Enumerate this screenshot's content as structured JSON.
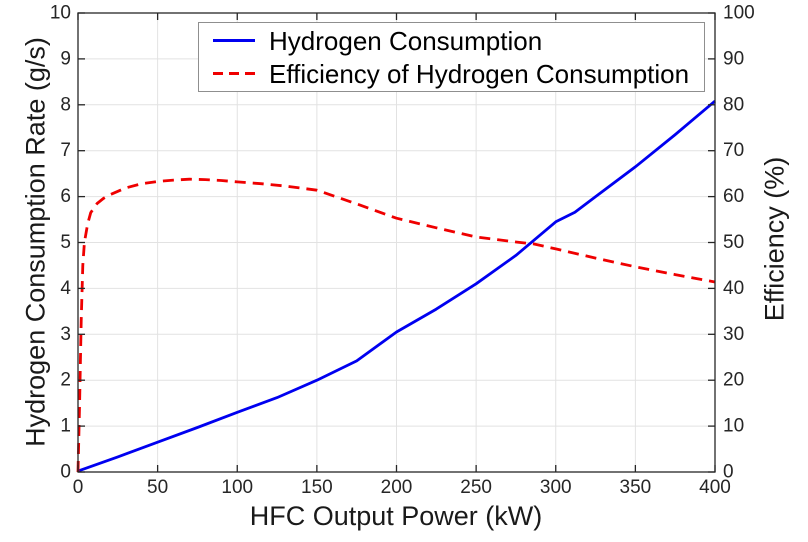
{
  "figure": {
    "background": "#ffffff"
  },
  "chart_data": {
    "type": "line",
    "title": "",
    "xlabel": "HFC Output Power (kW)",
    "ylabel_left": "Hydrogen Consumption Rate (g/s)",
    "ylabel_right": "Efficiency (%)",
    "x_range": [
      0,
      400
    ],
    "y_left_range": [
      0,
      10
    ],
    "y_right_range": [
      0,
      100
    ],
    "x_ticks": [
      0,
      50,
      100,
      150,
      200,
      250,
      300,
      350,
      400
    ],
    "y_left_ticks": [
      0,
      1,
      2,
      3,
      4,
      5,
      6,
      7,
      8,
      9,
      10
    ],
    "y_right_ticks": [
      0,
      10,
      20,
      30,
      40,
      50,
      60,
      70,
      80,
      90,
      100
    ],
    "grid": true,
    "grid_color": "#e2e2e2",
    "axis_color": "#262626",
    "legend": {
      "position": "top-center",
      "border_color": "#8f8f8f"
    },
    "series": [
      {
        "name": "Hydrogen Consumption",
        "axis": "left",
        "color": "#0000f0",
        "style": "solid",
        "line_width": 2.8,
        "points": [
          [
            0,
            0.02
          ],
          [
            25,
            0.33
          ],
          [
            50,
            0.65
          ],
          [
            75,
            0.97
          ],
          [
            100,
            1.3
          ],
          [
            125,
            1.62
          ],
          [
            150,
            2.0
          ],
          [
            175,
            2.42
          ],
          [
            200,
            3.05
          ],
          [
            225,
            3.55
          ],
          [
            250,
            4.1
          ],
          [
            275,
            4.72
          ],
          [
            300,
            5.45
          ],
          [
            312,
            5.66
          ],
          [
            325,
            6.0
          ],
          [
            350,
            6.65
          ],
          [
            375,
            7.35
          ],
          [
            400,
            8.08
          ]
        ]
      },
      {
        "name": "Efficiency of Hydrogen Consumption",
        "axis": "right",
        "color": "#ef0000",
        "style": "dashed",
        "line_width": 2.8,
        "points": [
          [
            0,
            0
          ],
          [
            1,
            15
          ],
          [
            2,
            33
          ],
          [
            3,
            45
          ],
          [
            4,
            50
          ],
          [
            6,
            54
          ],
          [
            8,
            56.5
          ],
          [
            12,
            58.5
          ],
          [
            16,
            59.6
          ],
          [
            20,
            60.4
          ],
          [
            30,
            61.9
          ],
          [
            40,
            62.8
          ],
          [
            50,
            63.3
          ],
          [
            60,
            63.6
          ],
          [
            70,
            63.8
          ],
          [
            80,
            63.7
          ],
          [
            90,
            63.5
          ],
          [
            100,
            63.2
          ],
          [
            115,
            62.8
          ],
          [
            130,
            62.3
          ],
          [
            150,
            61.4
          ],
          [
            175,
            58.4
          ],
          [
            200,
            55.3
          ],
          [
            225,
            53.2
          ],
          [
            250,
            51.2
          ],
          [
            275,
            50.1
          ],
          [
            286,
            49.7
          ],
          [
            300,
            48.6
          ],
          [
            325,
            46.6
          ],
          [
            350,
            44.7
          ],
          [
            375,
            43.0
          ],
          [
            400,
            41.4
          ]
        ]
      }
    ]
  }
}
